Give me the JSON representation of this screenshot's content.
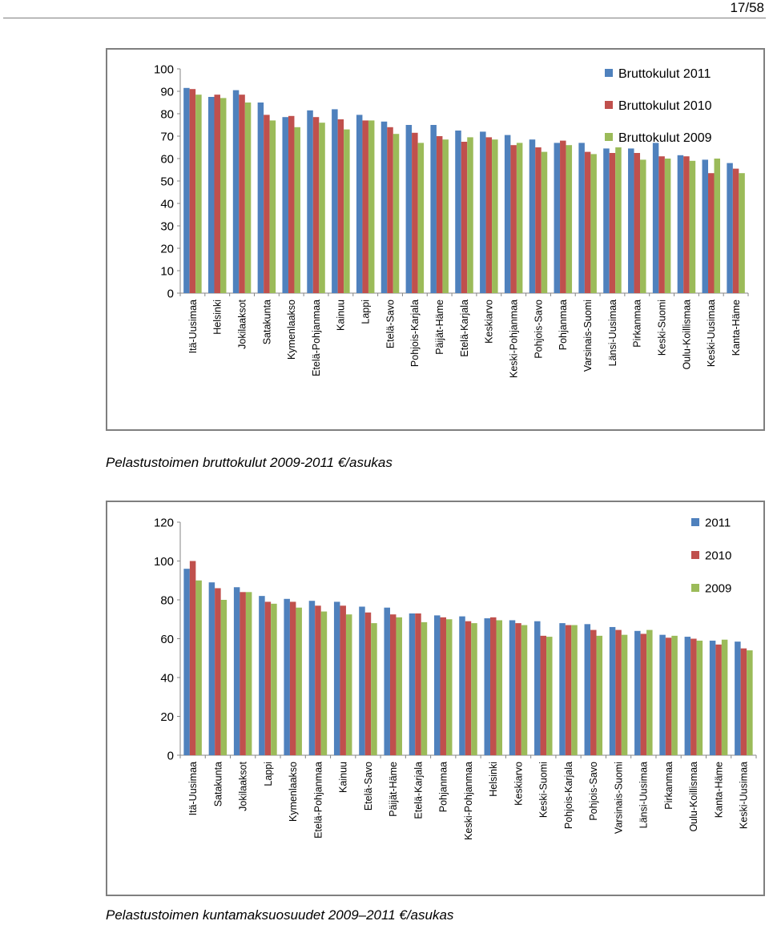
{
  "page": {
    "number": "17/58"
  },
  "captions": {
    "chart1": "Pelastustoimen bruttokulut 2009-2011 €/asukas",
    "chart2": "Pelastustoimen kuntamaksuosuudet 2009–2011 €/asukas"
  },
  "colors": {
    "blue": "#4f81bd",
    "red": "#c0504d",
    "green": "#9bbb59"
  },
  "chart_data": [
    {
      "type": "bar",
      "title": "",
      "xlabel": "",
      "ylabel": "",
      "ylim": [
        0,
        100
      ],
      "yticks": [
        0,
        10,
        20,
        30,
        40,
        50,
        60,
        70,
        80,
        90,
        100
      ],
      "grid": false,
      "legend_position": "top-right",
      "categories": [
        "Itä-Uusimaa",
        "Helsinki",
        "Jokilaaksot",
        "Satakunta",
        "Kymenlaakso",
        "Etelä-Pohjanmaa",
        "Kainuu",
        "Lappi",
        "Etelä-Savo",
        "Pohjois-Karjala",
        "Päijät-Häme",
        "Etelä-Karjala",
        "Keskiarvo",
        "Keski-Pohjanmaa",
        "Pohjois-Savo",
        "Pohjanmaa",
        "Varsinais-Suomi",
        "Länsi-Uusimaa",
        "Pirkanmaa",
        "Keski-Suomi",
        "Oulu-Koillismaa",
        "Keski-Uusimaa",
        "Kanta-Häme"
      ],
      "series": [
        {
          "name": "Bruttokulut 2011",
          "color": "#4f81bd",
          "values": [
            91.5,
            87.5,
            90.5,
            85,
            78.5,
            81.5,
            82,
            79.5,
            76.5,
            75,
            75,
            72.5,
            72,
            70.5,
            68.5,
            67,
            67,
            64.5,
            64.5,
            67,
            61.5,
            59.5,
            58
          ]
        },
        {
          "name": "Bruttokulut 2010",
          "color": "#c0504d",
          "values": [
            91,
            88.5,
            88.5,
            79.5,
            79,
            78.5,
            77.5,
            77,
            74,
            71.5,
            70,
            67.5,
            69.5,
            66,
            65,
            68,
            63,
            62.5,
            62.5,
            61,
            61,
            53.5,
            55.5
          ]
        },
        {
          "name": "Bruttokulut 2009",
          "color": "#9bbb59",
          "values": [
            88.5,
            87,
            85,
            77,
            74,
            76,
            73,
            77,
            71,
            67,
            68.5,
            69.5,
            68.5,
            67,
            63,
            66,
            62,
            65,
            59.5,
            60,
            59,
            60,
            53.5
          ]
        }
      ]
    },
    {
      "type": "bar",
      "title": "",
      "xlabel": "",
      "ylabel": "",
      "ylim": [
        0,
        120
      ],
      "yticks": [
        0,
        20,
        40,
        60,
        80,
        100,
        120
      ],
      "grid": false,
      "legend_position": "top-right",
      "categories": [
        "Itä-Uusimaa",
        "Satakunta",
        "Jokilaaksot",
        "Lappi",
        "Kymenlaakso",
        "Etelä-Pohjanmaa",
        "Kainuu",
        "Etelä-Savo",
        "Päijät-Häme",
        "Etelä-Karjala",
        "Pohjanmaa",
        "Keski-Pohjanmaa",
        "Helsinki",
        "Keskiarvo",
        "Keski-Suomi",
        "Pohjois-Karjala",
        "Pohjois-Savo",
        "Varsinais-Suomi",
        "Länsi-Uusimaa",
        "Pirkanmaa",
        "Oulu-Koillismaa",
        "Kanta-Häme",
        "Keski-Uusimaa"
      ],
      "series": [
        {
          "name": "2011",
          "color": "#4f81bd",
          "values": [
            96,
            89,
            86.5,
            82,
            80.5,
            79.5,
            79,
            76.5,
            76,
            73,
            72,
            71.5,
            70.5,
            69.5,
            69,
            68,
            67.5,
            66,
            64,
            62,
            61,
            59,
            58.5
          ]
        },
        {
          "name": "2010",
          "color": "#c0504d",
          "values": [
            100,
            86,
            84,
            79,
            79,
            77,
            77,
            73.5,
            72.5,
            73,
            71,
            69,
            71,
            68,
            61.5,
            67,
            64.5,
            64.5,
            62.5,
            60.5,
            60,
            57,
            55
          ]
        },
        {
          "name": "2009",
          "color": "#9bbb59",
          "values": [
            90,
            80,
            84,
            78,
            76,
            74,
            72.5,
            68,
            71,
            68.5,
            70,
            68,
            69.5,
            67,
            61,
            67,
            61.5,
            62,
            64.5,
            61.5,
            59,
            59.5,
            54
          ]
        }
      ]
    }
  ]
}
